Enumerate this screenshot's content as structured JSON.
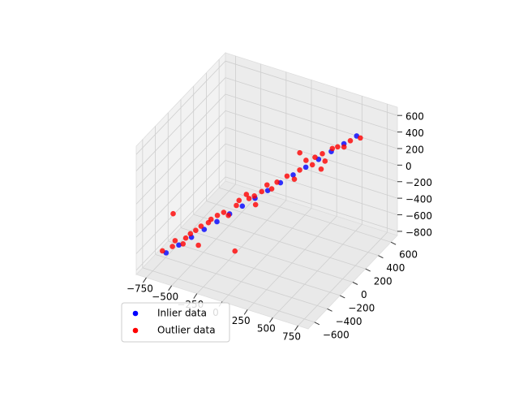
{
  "chart_data": {
    "type": "scatter3d",
    "xlim": [
      -850,
      850
    ],
    "ylim": [
      -700,
      700
    ],
    "zlim": [
      -850,
      700
    ],
    "xticks": [
      {
        "value": -750,
        "label": "−750"
      },
      {
        "value": -500,
        "label": "−500"
      },
      {
        "value": -250,
        "label": "−250"
      },
      0,
      250,
      500,
      750
    ],
    "yticks": [
      {
        "value": -600,
        "label": "−600"
      },
      {
        "value": -400,
        "label": "−400"
      },
      {
        "value": -200,
        "label": "−200"
      },
      0,
      200,
      400,
      600
    ],
    "zticks": [
      {
        "value": -800,
        "label": "−800"
      },
      {
        "value": -600,
        "label": "−600"
      },
      {
        "value": -400,
        "label": "−400"
      },
      {
        "value": -200,
        "label": "−200"
      },
      0,
      200,
      400,
      600
    ],
    "grid": true,
    "legend": "lower left",
    "series": [
      {
        "name": "Inlier data",
        "color": "#0000ff",
        "x": [
          -750,
          -650,
          -550,
          -450,
          -350,
          -250,
          -150,
          -50,
          50,
          150,
          250,
          350,
          450,
          550,
          650,
          750
        ],
        "y": [
          -390,
          -349,
          -309,
          -268,
          -227,
          -187,
          -146,
          -105,
          -65,
          -24,
          17,
          57,
          98,
          139,
          179,
          220
        ],
        "z": [
          -800,
          -700,
          -600,
          -500,
          -400,
          -300,
          -200,
          -100,
          0,
          100,
          200,
          300,
          400,
          500,
          600,
          700
        ]
      },
      {
        "name": "Outlier data",
        "color": "#ff0000",
        "x": [
          -780,
          -700,
          -680,
          -620,
          -600,
          -560,
          -520,
          -500,
          -480,
          -420,
          -400,
          -350,
          -300,
          -260,
          -200,
          -180,
          -120,
          -100,
          -60,
          0,
          40,
          80,
          120,
          200,
          260,
          300,
          350,
          400,
          420,
          480,
          500,
          560,
          600,
          650,
          700,
          780,
          -300,
          0,
          200,
          -800,
          600
        ],
        "y": [
          -400,
          -370,
          -360,
          -330,
          -320,
          -310,
          -290,
          -280,
          -270,
          -250,
          -240,
          -220,
          -200,
          -190,
          -160,
          -150,
          -130,
          -120,
          -100,
          -80,
          -60,
          -50,
          -30,
          0,
          20,
          40,
          60,
          80,
          90,
          110,
          120,
          140,
          160,
          180,
          200,
          230,
          300,
          -500,
          200,
          -200,
          -100
        ],
        "z": [
          -780,
          -720,
          -650,
          -690,
          -620,
          -560,
          -520,
          -700,
          -470,
          -420,
          -380,
          -330,
          -290,
          -320,
          -200,
          -140,
          -60,
          -110,
          -80,
          -20,
          60,
          20,
          100,
          180,
          150,
          260,
          380,
          330,
          420,
          470,
          380,
          540,
          560,
          560,
          640,
          680,
          -600,
          -400,
          300,
          -500,
          500
        ]
      }
    ]
  }
}
